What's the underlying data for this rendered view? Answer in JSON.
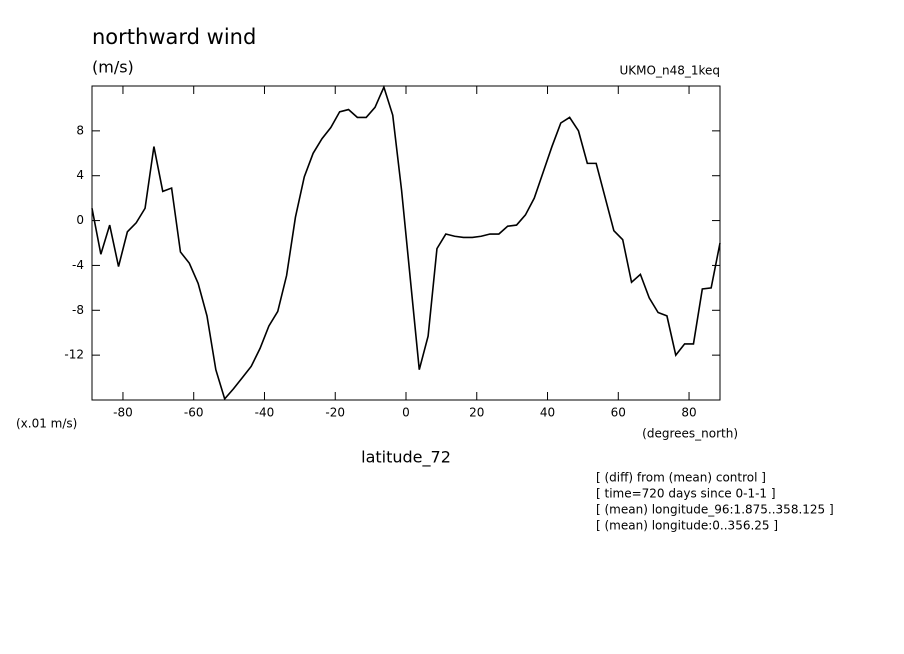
{
  "chart_data": {
    "type": "line",
    "title": "northward wind",
    "units": "(m/s)",
    "dataset": "UKMO_n48_1keq",
    "y_scale_note": "(x.01 m/s)",
    "x_units": "(degrees_north)",
    "x_label": "latitude_72",
    "notes": [
      "[ (diff) from (mean) control ]",
      "[ time=720 days since 0-1-1 ]",
      "[ (mean) longitude_96:1.875..358.125 ]",
      "[ (mean) longitude:0..356.25 ]"
    ],
    "x": [
      -88.75,
      -86.25,
      -83.75,
      -81.25,
      -78.75,
      -76.25,
      -73.75,
      -71.25,
      -68.75,
      -66.25,
      -63.75,
      -61.25,
      -58.75,
      -56.25,
      -53.75,
      -51.25,
      -48.75,
      -46.25,
      -43.75,
      -41.25,
      -38.75,
      -36.25,
      -33.75,
      -31.25,
      -28.75,
      -26.25,
      -23.75,
      -21.25,
      -18.75,
      -16.25,
      -13.75,
      -11.25,
      -8.75,
      -6.25,
      -3.75,
      -1.25,
      1.25,
      3.75,
      6.25,
      8.75,
      11.25,
      13.75,
      16.25,
      18.75,
      21.25,
      23.75,
      26.25,
      28.75,
      31.25,
      33.75,
      36.25,
      38.75,
      41.25,
      43.75,
      46.25,
      48.75,
      51.25,
      53.75,
      56.25,
      58.75,
      61.25,
      63.75,
      66.25,
      68.75,
      71.25,
      73.75,
      76.25,
      78.75,
      81.25,
      83.75,
      86.25,
      88.75
    ],
    "series": [
      {
        "color": "#000000",
        "values": [
          1.1,
          -3.0,
          -0.4,
          -4.1,
          -1.0,
          -0.2,
          1.1,
          6.6,
          2.6,
          2.9,
          -2.8,
          -3.8,
          -5.6,
          -8.5,
          -13.3,
          -15.9,
          -15.0,
          -14.0,
          -13.0,
          -11.4,
          -9.4,
          -8.1,
          -4.9,
          0.3,
          3.9,
          6.0,
          7.3,
          8.3,
          9.7,
          9.9,
          9.2,
          9.2,
          10.1,
          11.9,
          9.4,
          2.7,
          -5.3,
          -13.3,
          -10.3,
          -2.5,
          -1.2,
          -1.4,
          -1.5,
          -1.5,
          -1.4,
          -1.2,
          -1.2,
          -0.5,
          -0.4,
          0.5,
          2.0,
          4.3,
          6.6,
          8.7,
          9.2,
          8.0,
          5.1,
          5.1,
          2.1,
          -0.9,
          -1.7,
          -5.5,
          -4.8,
          -6.9,
          -8.2,
          -8.5,
          -12.0,
          -11.0,
          -11.0,
          -6.1,
          -6.0,
          -2.0
        ]
      }
    ],
    "xlim": [
      -88.75,
      88.75
    ],
    "ylim": [
      -16,
      12
    ],
    "xticks": [
      -80,
      -60,
      -40,
      -20,
      0,
      20,
      40,
      60,
      80
    ],
    "yticks": [
      -12,
      -8,
      -4,
      0,
      4,
      8
    ]
  }
}
